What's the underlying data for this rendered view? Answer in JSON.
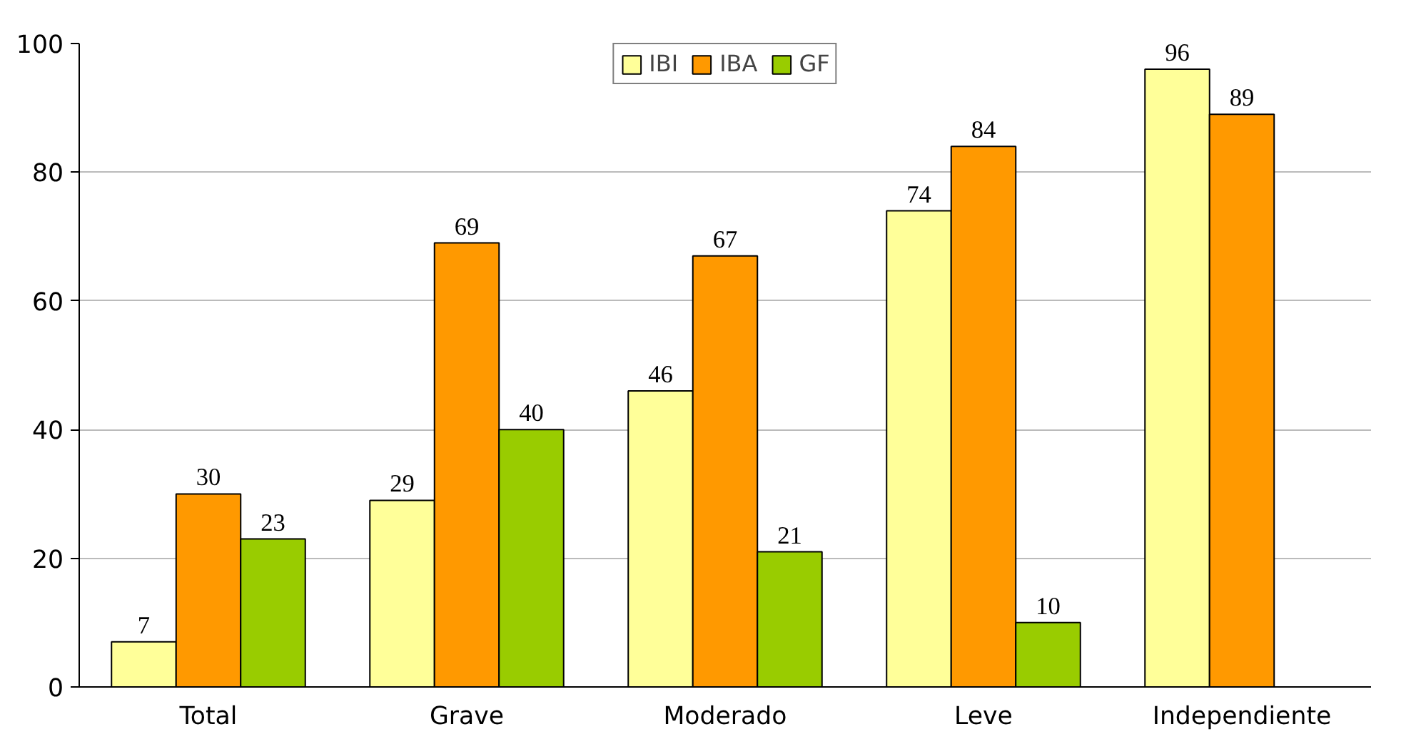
{
  "chart_data": {
    "type": "bar",
    "categories": [
      "Total",
      "Grave",
      "Moderado",
      "Leve",
      "Independiente"
    ],
    "series": [
      {
        "name": "IBI",
        "color": "#ffff99",
        "values": [
          7,
          29,
          46,
          74,
          96
        ]
      },
      {
        "name": "IBA",
        "color": "#ff9900",
        "values": [
          30,
          69,
          67,
          84,
          89
        ]
      },
      {
        "name": "GF",
        "color": "#99cc00",
        "values": [
          23,
          40,
          21,
          10,
          null
        ]
      }
    ],
    "ylim": [
      0,
      100
    ],
    "yticks": [
      0,
      20,
      40,
      60,
      80,
      100
    ],
    "grid": "y",
    "legend": "top",
    "data_labels": true
  }
}
